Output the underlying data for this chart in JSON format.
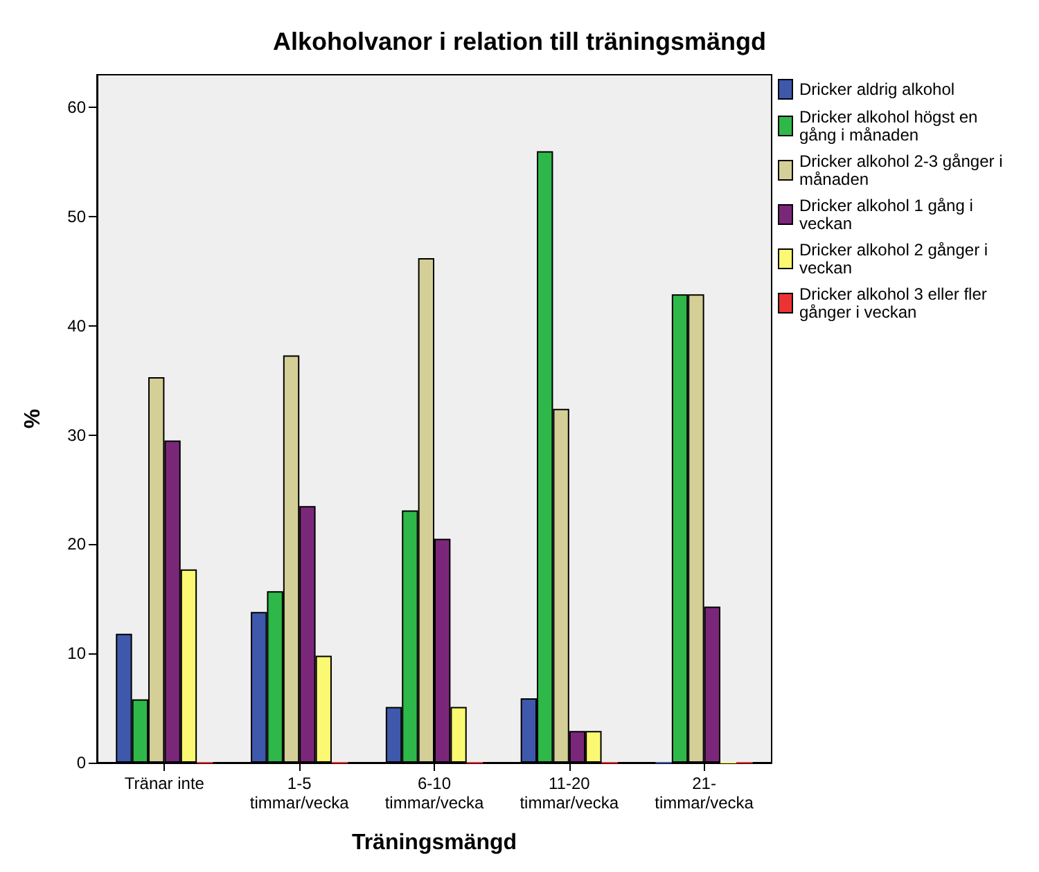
{
  "chart_data": {
    "type": "bar",
    "title": "Alkoholvanor i relation till träningsmängd",
    "xlabel": "Träningsmängd",
    "ylabel": "%",
    "categories": [
      "Tränar inte",
      "1-5 timmar/vecka",
      "6-10 timmar/vecka",
      "11-20 timmar/vecka",
      "21- timmar/vecka"
    ],
    "series": [
      {
        "name": "Dricker aldrig alkohol",
        "color": "#3e58ac",
        "values": [
          11.8,
          13.8,
          5.1,
          5.9,
          0
        ]
      },
      {
        "name": "Dricker alkohol högst en gång i månaden",
        "color": "#2fb84a",
        "values": [
          5.8,
          15.7,
          23.1,
          56.0,
          42.9
        ]
      },
      {
        "name": "Dricker alkohol 2-3 gånger i månaden",
        "color": "#d4cf96",
        "values": [
          35.3,
          37.3,
          46.2,
          32.4,
          42.9
        ]
      },
      {
        "name": "Dricker alkohol 1 gång i veckan",
        "color": "#7b2779",
        "values": [
          29.5,
          23.5,
          20.5,
          2.9,
          14.3
        ]
      },
      {
        "name": "Dricker alkohol 2 gånger i veckan",
        "color": "#fbf872",
        "values": [
          17.7,
          9.8,
          5.1,
          2.9,
          0
        ]
      },
      {
        "name": "Dricker alkohol 3 eller fler gånger i veckan",
        "color": "#eb3333",
        "values": [
          0,
          0,
          0,
          0,
          0
        ]
      }
    ],
    "ylim": [
      0,
      63
    ],
    "yticks": [
      0,
      10,
      20,
      30,
      40,
      50,
      60
    ],
    "grid": false,
    "legend": "right"
  }
}
